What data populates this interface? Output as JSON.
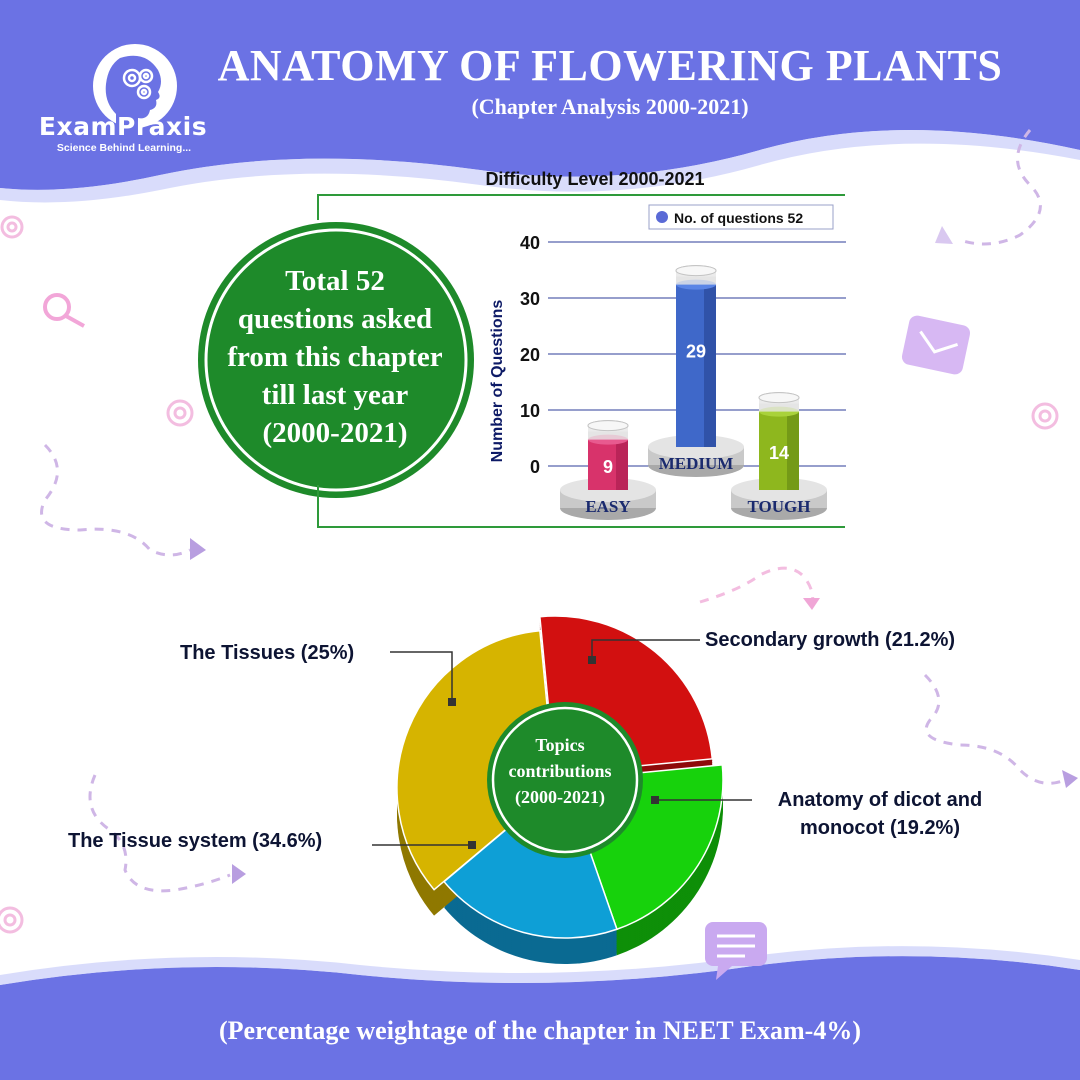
{
  "brand": {
    "name": "ExamPraxis",
    "tagline": "Science Behind Learning..."
  },
  "header": {
    "title": "ANATOMY OF FLOWERING PLANTS",
    "subtitle": "(Chapter Analysis 2000-2021)"
  },
  "summary": {
    "lines": [
      "Total 52",
      "questions asked",
      "from this chapter",
      "till last year",
      "(2000-2021)"
    ]
  },
  "footer": {
    "text": "(Percentage weightage of the chapter in NEET Exam-4%)"
  },
  "colors": {
    "header_bg": "#6b72e4",
    "summary_circle": "#1e8a2a",
    "easy": "#d8336b",
    "medium": "#3f68c9",
    "tough": "#8eb71e",
    "tissues": "#d21010",
    "secondary_growth": "#17d20c",
    "dicot_monocot": "#0e9fd6",
    "tissue_system": "#d6b400"
  },
  "chart_data": [
    {
      "type": "bar",
      "title": "Difficulty Level 2000-2021",
      "ylabel": "Number of Questions",
      "xlabel": "",
      "ylim": [
        0,
        40
      ],
      "yticks": [
        0,
        10,
        20,
        30,
        40
      ],
      "grid": true,
      "legend": {
        "position": "top-right",
        "entries": [
          "No. of questions 52"
        ]
      },
      "categories": [
        "EASY",
        "MEDIUM",
        "TOUGH"
      ],
      "series": [
        {
          "name": "No. of questions 52",
          "values": [
            9,
            29,
            14
          ]
        }
      ]
    },
    {
      "type": "pie",
      "center_label": [
        "Topics",
        "contributions",
        "(2000-2021)"
      ],
      "slices": [
        {
          "label": "The Tissues (25%)",
          "value": 25
        },
        {
          "label": "Secondary growth (21.2%)",
          "value": 21.2
        },
        {
          "label": "Anatomy of dicot and monocot (19.2%)",
          "value": 19.2
        },
        {
          "label": "The Tissue system (34.6%)",
          "value": 34.6
        }
      ]
    }
  ]
}
